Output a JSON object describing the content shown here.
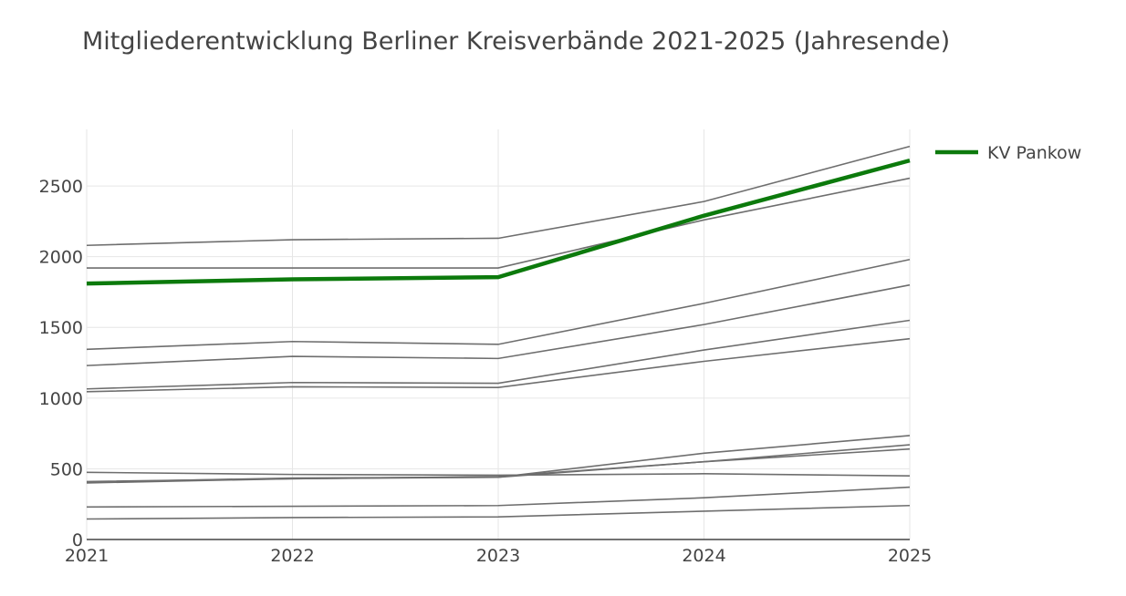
{
  "chart_data": {
    "type": "line",
    "title": "Mitgliederentwicklung Berliner Kreisverbände 2021-2025 (Jahresende)",
    "xlabel": "",
    "ylabel": "",
    "x": [
      2021,
      2022,
      2023,
      2024,
      2025
    ],
    "xlim": [
      2021,
      2025
    ],
    "ylim": [
      0,
      2900
    ],
    "y_ticks": [
      0,
      500,
      1000,
      1500,
      2000,
      2500
    ],
    "grid": true,
    "legend": {
      "placement": "top-right",
      "entries": [
        "KV Pankow"
      ]
    },
    "colors": {
      "highlight": "#0c7a0c",
      "others": "#6e6e6e",
      "grid": "#e6e6e6",
      "axis": "#444444"
    },
    "highlight": {
      "name": "KV Pankow",
      "values": [
        1810,
        1840,
        1855,
        2290,
        2680
      ]
    },
    "series": [
      {
        "values": [
          2080,
          2120,
          2130,
          2390,
          2780
        ]
      },
      {
        "values": [
          1920,
          1920,
          1920,
          2260,
          2555
        ]
      },
      {
        "values": [
          1345,
          1400,
          1380,
          1670,
          1980
        ]
      },
      {
        "values": [
          1230,
          1295,
          1280,
          1520,
          1800
        ]
      },
      {
        "values": [
          1065,
          1110,
          1105,
          1340,
          1550
        ]
      },
      {
        "values": [
          1045,
          1080,
          1075,
          1260,
          1420
        ]
      },
      {
        "values": [
          405,
          435,
          440,
          610,
          735
        ]
      },
      {
        "values": [
          400,
          430,
          445,
          550,
          670
        ]
      },
      {
        "values": [
          475,
          460,
          455,
          465,
          450
        ]
      },
      {
        "values": [
          410,
          430,
          440,
          550,
          640
        ]
      },
      {
        "values": [
          230,
          235,
          240,
          295,
          370
        ]
      },
      {
        "values": [
          145,
          155,
          160,
          200,
          240
        ]
      }
    ]
  }
}
